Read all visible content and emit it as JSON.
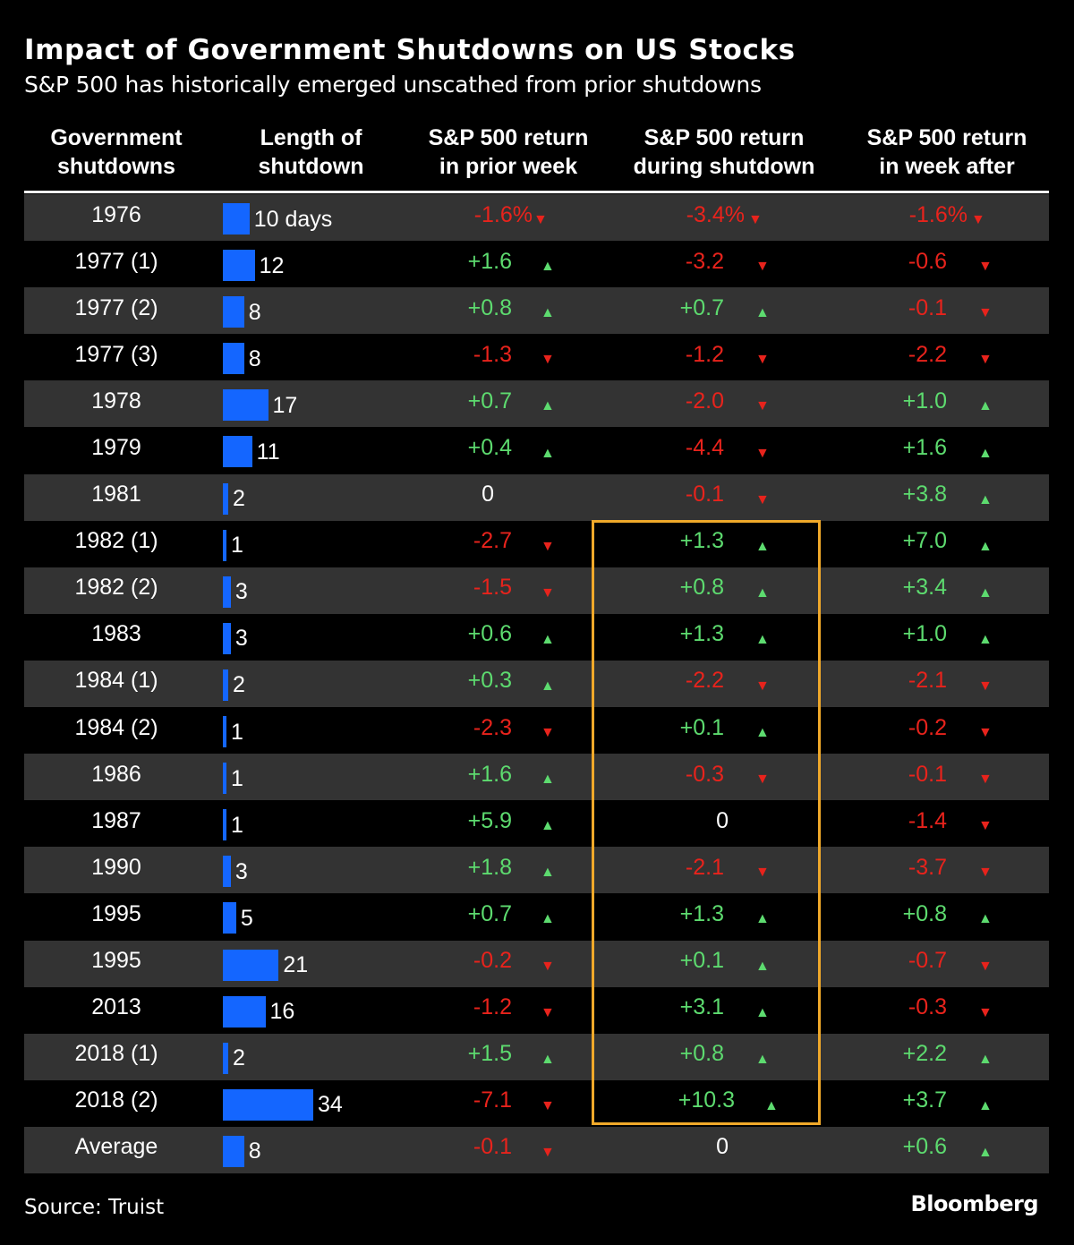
{
  "header": {
    "title": "Impact of Government Shutdowns on US Stocks",
    "subtitle": "S&P 500 has historically emerged unscathed from prior shutdowns"
  },
  "footer": {
    "source": "Source: Truist",
    "brand": "Bloomberg"
  },
  "colors": {
    "background": "#000000",
    "alt_row": "#333333",
    "bar": "#1466ff",
    "positive": "#5ddb6f",
    "negative": "#e8231c",
    "highlight": "#f0a92a"
  },
  "chart_data": {
    "type": "table",
    "title": "Impact of Government Shutdowns on US Stocks",
    "subtitle": "S&P 500 has historically emerged unscathed from prior shutdowns",
    "columns": [
      "Government shutdowns",
      "Length of shutdown",
      "S&P 500 return in prior week",
      "S&P 500 return during shutdown",
      "S&P 500 return in week after"
    ],
    "column_headers": [
      [
        "Government",
        "shutdowns"
      ],
      [
        "Length of",
        "shutdown"
      ],
      [
        "S&P 500 return",
        "in prior week"
      ],
      [
        "S&P 500 return",
        "during shutdown"
      ],
      [
        "S&P 500 return",
        "in week after"
      ]
    ],
    "length_unit_label": "days",
    "max_length": 34,
    "highlight": {
      "column": "S&P 500 return during shutdown",
      "from_row": "1982 (1)",
      "to_row": "2018 (2)"
    },
    "rows": [
      {
        "name": "1976",
        "length": 10,
        "length_label": "10 days",
        "prior": -1.6,
        "prior_label": "-1.6%",
        "during": -3.4,
        "during_label": "-3.4%",
        "after": -1.6,
        "after_label": "-1.6%"
      },
      {
        "name": "1977 (1)",
        "length": 12,
        "length_label": "12",
        "prior": 1.6,
        "prior_label": "+1.6",
        "during": -3.2,
        "during_label": "-3.2",
        "after": -0.6,
        "after_label": "-0.6"
      },
      {
        "name": "1977 (2)",
        "length": 8,
        "length_label": "8",
        "prior": 0.8,
        "prior_label": "+0.8",
        "during": 0.7,
        "during_label": "+0.7",
        "after": -0.1,
        "after_label": "-0.1"
      },
      {
        "name": "1977 (3)",
        "length": 8,
        "length_label": "8",
        "prior": -1.3,
        "prior_label": "-1.3",
        "during": -1.2,
        "during_label": "-1.2",
        "after": -2.2,
        "after_label": "-2.2"
      },
      {
        "name": "1978",
        "length": 17,
        "length_label": "17",
        "prior": 0.7,
        "prior_label": "+0.7",
        "during": -2.0,
        "during_label": "-2.0",
        "after": 1.0,
        "after_label": "+1.0"
      },
      {
        "name": "1979",
        "length": 11,
        "length_label": "11",
        "prior": 0.4,
        "prior_label": "+0.4",
        "during": -4.4,
        "during_label": "-4.4",
        "after": 1.6,
        "after_label": "+1.6"
      },
      {
        "name": "1981",
        "length": 2,
        "length_label": "2",
        "prior": 0,
        "prior_label": "0",
        "during": -0.1,
        "during_label": "-0.1",
        "after": 3.8,
        "after_label": "+3.8"
      },
      {
        "name": "1982 (1)",
        "length": 1,
        "length_label": "1",
        "prior": -2.7,
        "prior_label": "-2.7",
        "during": 1.3,
        "during_label": "+1.3",
        "after": 7.0,
        "after_label": "+7.0"
      },
      {
        "name": "1982 (2)",
        "length": 3,
        "length_label": "3",
        "prior": -1.5,
        "prior_label": "-1.5",
        "during": 0.8,
        "during_label": "+0.8",
        "after": 3.4,
        "after_label": "+3.4"
      },
      {
        "name": "1983",
        "length": 3,
        "length_label": "3",
        "prior": 0.6,
        "prior_label": "+0.6",
        "during": 1.3,
        "during_label": "+1.3",
        "after": 1.0,
        "after_label": "+1.0"
      },
      {
        "name": "1984 (1)",
        "length": 2,
        "length_label": "2",
        "prior": 0.3,
        "prior_label": "+0.3",
        "during": -2.2,
        "during_label": "-2.2",
        "after": -2.1,
        "after_label": "-2.1"
      },
      {
        "name": "1984 (2)",
        "length": 1,
        "length_label": "1",
        "prior": -2.3,
        "prior_label": "-2.3",
        "during": 0.1,
        "during_label": "+0.1",
        "after": -0.2,
        "after_label": "-0.2"
      },
      {
        "name": "1986",
        "length": 1,
        "length_label": "1",
        "prior": 1.6,
        "prior_label": "+1.6",
        "during": -0.3,
        "during_label": "-0.3",
        "after": -0.1,
        "after_label": "-0.1"
      },
      {
        "name": "1987",
        "length": 1,
        "length_label": "1",
        "prior": 5.9,
        "prior_label": "+5.9",
        "during": 0,
        "during_label": "0",
        "after": -1.4,
        "after_label": "-1.4"
      },
      {
        "name": "1990",
        "length": 3,
        "length_label": "3",
        "prior": 1.8,
        "prior_label": "+1.8",
        "during": -2.1,
        "during_label": "-2.1",
        "after": -3.7,
        "after_label": "-3.7"
      },
      {
        "name": "1995",
        "length": 5,
        "length_label": "5",
        "prior": 0.7,
        "prior_label": "+0.7",
        "during": 1.3,
        "during_label": "+1.3",
        "after": 0.8,
        "after_label": "+0.8"
      },
      {
        "name": "1995",
        "length": 21,
        "length_label": "21",
        "prior": -0.2,
        "prior_label": "-0.2",
        "during": 0.1,
        "during_label": "+0.1",
        "after": -0.7,
        "after_label": "-0.7"
      },
      {
        "name": "2013",
        "length": 16,
        "length_label": "16",
        "prior": -1.2,
        "prior_label": "-1.2",
        "during": 3.1,
        "during_label": "+3.1",
        "after": -0.3,
        "after_label": "-0.3"
      },
      {
        "name": "2018 (1)",
        "length": 2,
        "length_label": "2",
        "prior": 1.5,
        "prior_label": "+1.5",
        "during": 0.8,
        "during_label": "+0.8",
        "after": 2.2,
        "after_label": "+2.2"
      },
      {
        "name": "2018 (2)",
        "length": 34,
        "length_label": "34",
        "prior": -7.1,
        "prior_label": "-7.1",
        "during": 10.3,
        "during_label": "+10.3",
        "after": 3.7,
        "after_label": "+3.7"
      },
      {
        "name": "Average",
        "length": 8,
        "length_label": "8",
        "prior": -0.1,
        "prior_label": "-0.1",
        "during": 0,
        "during_label": "0",
        "after": 0.6,
        "after_label": "+0.6"
      }
    ],
    "arrows": {
      "up": "▲",
      "down": "▼"
    }
  }
}
